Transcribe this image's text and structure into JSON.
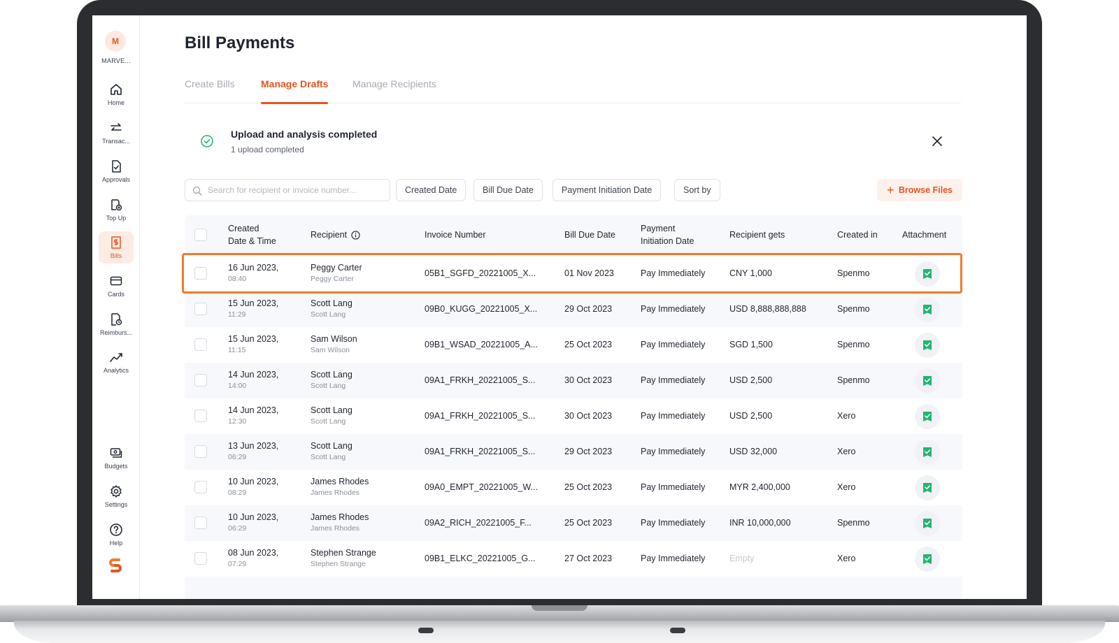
{
  "org": {
    "avatar_letter": "M",
    "name": "MARVE..."
  },
  "sidebar": {
    "items": [
      {
        "label": "Home",
        "icon": "home-icon"
      },
      {
        "label": "Transac...",
        "icon": "arrows-exchange-icon"
      },
      {
        "label": "Approvals",
        "icon": "document-check-icon"
      },
      {
        "label": "Top Up",
        "icon": "wallet-plus-icon"
      },
      {
        "label": "Bills",
        "icon": "bill-icon",
        "active": true
      },
      {
        "label": "Cards",
        "icon": "card-icon"
      },
      {
        "label": "Reimburs...",
        "icon": "receipt-icon"
      },
      {
        "label": "Analytics",
        "icon": "chart-line-icon"
      }
    ],
    "bottom_items": [
      {
        "label": "Budgets",
        "icon": "budget-icon"
      },
      {
        "label": "Settings",
        "icon": "gear-icon"
      },
      {
        "label": "Help",
        "icon": "help-icon"
      }
    ]
  },
  "page": {
    "title": "Bill Payments"
  },
  "tabs": [
    {
      "label": "Create Bills"
    },
    {
      "label": "Manage Drafts",
      "active": true
    },
    {
      "label": "Manage Recipients"
    }
  ],
  "banner": {
    "title": "Upload and analysis completed",
    "subtitle": "1 upload completed"
  },
  "toolbar": {
    "search_placeholder": "Search for recipient or invoice number...",
    "filters": [
      "Created Date",
      "Bill Due Date",
      "Payment Initiation Date",
      "Sort by"
    ],
    "browse_label": "Browse Files"
  },
  "table": {
    "columns": [
      {
        "line1": "Created",
        "line2": "Date & Time"
      },
      {
        "line1": "Recipient",
        "line2": ""
      },
      {
        "line1": "Invoice Number",
        "line2": ""
      },
      {
        "line1": "Bill Due Date",
        "line2": ""
      },
      {
        "line1": "Payment",
        "line2": "Initiation Date"
      },
      {
        "line1": "Recipient gets",
        "line2": ""
      },
      {
        "line1": "Created in",
        "line2": ""
      },
      {
        "line1": "Attachment",
        "line2": ""
      }
    ],
    "rows": [
      {
        "date": "16 Jun 2023,",
        "time": "08:40",
        "recipient": "Peggy Carter",
        "recipient_sub": "Peggy Carter",
        "invoice": "05B1_SGFD_20221005_X...",
        "due": "01 Nov 2023",
        "initiation": "Pay Immediately",
        "amount": "CNY 1,000",
        "created_in": "Spenmo"
      },
      {
        "date": "15 Jun 2023,",
        "time": "11:29",
        "recipient": "Scott Lang",
        "recipient_sub": "Scott Lang",
        "invoice": "09B0_KUGG_20221005_X...",
        "due": "29 Oct 2023",
        "initiation": "Pay Immediately",
        "amount": "USD 8,888,888,888",
        "created_in": "Spenmo"
      },
      {
        "date": "15 Jun 2023,",
        "time": "11:15",
        "recipient": "Sam Wilson",
        "recipient_sub": "Sam Wilson",
        "invoice": "09B1_WSAD_20221005_A...",
        "due": "25 Oct 2023",
        "initiation": "Pay Immediately",
        "amount": "SGD 1,500",
        "created_in": "Spenmo"
      },
      {
        "date": "14 Jun 2023,",
        "time": "14:00",
        "recipient": "Scott Lang",
        "recipient_sub": "Scott Lang",
        "invoice": "09A1_FRKH_20221005_S...",
        "due": "30 Oct 2023",
        "initiation": "Pay Immediately",
        "amount": "USD 2,500",
        "created_in": "Spenmo"
      },
      {
        "date": "14 Jun 2023,",
        "time": "12:30",
        "recipient": "Scott Lang",
        "recipient_sub": "Scott Lang",
        "invoice": "09A1_FRKH_20221005_S...",
        "due": "30 Oct 2023",
        "initiation": "Pay Immediately",
        "amount": "USD 2,500",
        "created_in": "Xero"
      },
      {
        "date": "13 Jun 2023,",
        "time": "06:29",
        "recipient": "Scott Lang",
        "recipient_sub": "Scott Lang",
        "invoice": "09A1_FRKH_20221005_S...",
        "due": "29 Oct 2023",
        "initiation": "Pay Immediately",
        "amount": "USD 32,000",
        "created_in": "Xero"
      },
      {
        "date": "10 Jun 2023,",
        "time": "08:29",
        "recipient": "James Rhodes",
        "recipient_sub": "James Rhodes",
        "invoice": "09A0_EMPT_20221005_W...",
        "due": "25 Oct 2023",
        "initiation": "Pay Immediately",
        "amount": "MYR 2,400,000",
        "created_in": "Xero"
      },
      {
        "date": "10 Jun 2023,",
        "time": "06:29",
        "recipient": "James Rhodes",
        "recipient_sub": "James Rhodes",
        "invoice": "09A2_RICH_20221005_F...",
        "due": "25 Oct 2023",
        "initiation": "Pay Immediately",
        "amount": "INR 10,000,000",
        "created_in": "Spenmo"
      },
      {
        "date": "08 Jun 2023,",
        "time": "07:29",
        "recipient": "Stephen Strange",
        "recipient_sub": "Stephen Strange",
        "invoice": "09B1_ELKC_20221005_G...",
        "due": "27 Oct 2023",
        "initiation": "Pay Immediately",
        "amount": "Empty",
        "amount_empty": true,
        "created_in": "Xero"
      }
    ]
  },
  "colors": {
    "accent": "#e8531e",
    "success": "#22b573",
    "highlight": "#f07a2c",
    "row_alt": "#f6f8fb"
  }
}
